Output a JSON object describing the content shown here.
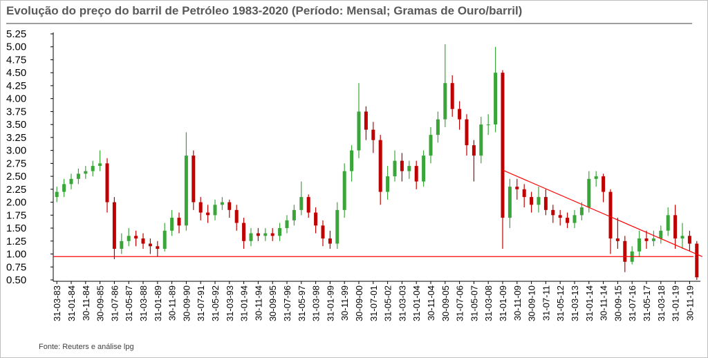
{
  "chart_data": {
    "type": "candlestick",
    "title": "Evolução do preço do barril de Petróleo 1983-2020 (Período: Mensal; Gramas de Ouro/barril)",
    "source": "Fonte: Reuters e análise lpg",
    "categories": [
      "31-03-83",
      null,
      "31-01-84",
      null,
      "30-11-84",
      null,
      "30-09-85",
      null,
      "31-07-86",
      null,
      "31-05-87",
      null,
      "31-03-88",
      null,
      "31-01-89",
      null,
      "30-11-89",
      null,
      "30-09-90",
      null,
      "31-07-91",
      null,
      "31-05-92",
      null,
      "31-03-93",
      null,
      "31-01-94",
      null,
      "30-11-94",
      null,
      "30-09-95",
      null,
      "31-07-96",
      null,
      "31-05-97",
      null,
      "31-03-98",
      null,
      "31-01-99",
      null,
      "30-11-99",
      null,
      "30-09-00",
      null,
      "31-07-01",
      null,
      "31-05-02",
      null,
      "31-03-03",
      null,
      "31-01-04",
      null,
      "30-11-04",
      null,
      "30-09-05",
      null,
      "31-07-06",
      null,
      "31-05-07",
      null,
      "31-03-08",
      null,
      "31-01-09",
      null,
      "30-11-09",
      null,
      "30-09-10",
      null,
      "31-07-11",
      null,
      "31-05-12",
      null,
      "31-03-13",
      null,
      "31-01-14",
      null,
      "30-11-14",
      null,
      "30-09-15",
      null,
      "31-07-16",
      null,
      "31-05-17",
      null,
      "31-03-18",
      null,
      "31-01-19",
      null,
      "30-11-19",
      null
    ],
    "open": [
      2.1,
      2.2,
      2.35,
      2.45,
      2.55,
      2.6,
      2.7,
      2.75,
      2.0,
      1.1,
      1.25,
      1.35,
      1.3,
      1.2,
      1.15,
      1.1,
      1.45,
      1.7,
      1.55,
      2.9,
      2.0,
      1.8,
      1.75,
      1.95,
      2.0,
      1.85,
      1.6,
      1.25,
      1.4,
      1.35,
      1.4,
      1.35,
      1.5,
      1.65,
      1.85,
      2.1,
      1.8,
      1.55,
      1.3,
      1.2,
      1.85,
      2.6,
      3.0,
      3.75,
      3.4,
      3.2,
      2.2,
      2.5,
      2.8,
      2.6,
      2.7,
      2.4,
      2.9,
      3.3,
      3.6,
      4.3,
      3.8,
      3.6,
      3.1,
      2.9,
      3.5,
      3.5,
      4.5,
      1.7,
      2.3,
      2.25,
      2.1,
      1.95,
      2.1,
      1.85,
      1.75,
      1.7,
      1.6,
      1.75,
      1.9,
      2.45,
      2.5,
      2.2,
      1.3,
      1.25,
      0.85,
      1.05,
      1.3,
      1.25,
      1.3,
      1.45,
      1.75,
      1.3,
      1.35,
      1.2
    ],
    "high": [
      2.3,
      2.45,
      2.55,
      2.65,
      2.7,
      2.8,
      3.0,
      2.85,
      2.1,
      1.4,
      1.5,
      1.45,
      1.4,
      1.3,
      1.25,
      1.6,
      1.85,
      1.8,
      3.35,
      3.0,
      2.1,
      1.95,
      2.05,
      2.1,
      2.05,
      1.95,
      1.7,
      1.5,
      1.5,
      1.5,
      1.5,
      1.6,
      1.75,
      1.95,
      2.4,
      2.15,
      1.9,
      1.65,
      1.45,
      2.0,
      2.75,
      3.1,
      4.3,
      3.85,
      3.55,
      3.3,
      2.7,
      3.0,
      2.95,
      2.8,
      2.8,
      3.0,
      3.45,
      3.75,
      5.05,
      4.45,
      3.95,
      3.7,
      3.2,
      3.65,
      3.7,
      5.0,
      4.55,
      2.45,
      2.45,
      2.35,
      2.2,
      2.3,
      2.25,
      1.95,
      1.85,
      1.8,
      1.85,
      2.0,
      2.6,
      2.6,
      2.55,
      2.25,
      1.7,
      1.35,
      1.15,
      1.45,
      1.45,
      1.45,
      1.55,
      1.9,
      1.95,
      1.6,
      1.45,
      1.25
    ],
    "low": [
      2.0,
      2.1,
      2.25,
      2.35,
      2.45,
      2.5,
      2.6,
      1.8,
      0.9,
      1.0,
      1.15,
      1.15,
      1.1,
      1.0,
      0.95,
      1.05,
      1.35,
      1.4,
      1.45,
      1.85,
      1.65,
      1.6,
      1.65,
      1.85,
      1.7,
      1.45,
      1.1,
      1.15,
      1.25,
      1.25,
      1.25,
      1.25,
      1.4,
      1.55,
      1.75,
      1.7,
      1.4,
      1.15,
      1.1,
      1.1,
      1.7,
      2.4,
      2.85,
      3.2,
      2.95,
      1.95,
      2.05,
      2.4,
      2.4,
      2.45,
      2.25,
      2.3,
      2.75,
      3.15,
      3.45,
      3.65,
      3.4,
      2.9,
      2.4,
      2.75,
      3.3,
      3.35,
      1.1,
      1.5,
      2.05,
      1.9,
      1.8,
      1.8,
      1.75,
      1.6,
      1.55,
      1.5,
      1.5,
      1.65,
      1.8,
      2.3,
      2.0,
      1.0,
      1.1,
      0.65,
      0.8,
      0.95,
      1.1,
      1.15,
      1.2,
      1.35,
      1.1,
      1.1,
      1.05,
      0.5
    ],
    "close": [
      2.2,
      2.35,
      2.45,
      2.55,
      2.6,
      2.7,
      2.75,
      2.0,
      1.1,
      1.25,
      1.35,
      1.3,
      1.2,
      1.15,
      1.1,
      1.45,
      1.7,
      1.55,
      2.9,
      2.0,
      1.8,
      1.75,
      1.95,
      2.0,
      1.85,
      1.6,
      1.25,
      1.4,
      1.35,
      1.4,
      1.35,
      1.5,
      1.65,
      1.85,
      2.1,
      1.8,
      1.55,
      1.3,
      1.2,
      1.85,
      2.6,
      3.0,
      3.75,
      3.4,
      3.2,
      2.2,
      2.5,
      2.8,
      2.6,
      2.7,
      2.4,
      2.9,
      3.3,
      3.6,
      4.3,
      3.8,
      3.6,
      3.1,
      2.9,
      3.5,
      3.5,
      4.5,
      1.7,
      2.3,
      2.25,
      2.1,
      1.95,
      2.1,
      1.85,
      1.75,
      1.7,
      1.6,
      1.75,
      1.9,
      2.45,
      2.5,
      2.2,
      1.3,
      1.25,
      0.85,
      1.05,
      1.3,
      1.25,
      1.3,
      1.45,
      1.75,
      1.3,
      1.35,
      1.2,
      0.55
    ],
    "up_color": "#3aa63a",
    "down_color": "#c00000",
    "ylim": [
      0.5,
      5.25
    ],
    "yticks": [
      {
        "value": 0.5,
        "label": "0.50"
      },
      {
        "value": 0.75,
        "label": "0.75"
      },
      {
        "value": 1,
        "label": "1.00"
      },
      {
        "value": 1.25,
        "label": "1.25"
      },
      {
        "value": 1.5,
        "label": "1.50"
      },
      {
        "value": 1.75,
        "label": "1.75"
      },
      {
        "value": 2,
        "label": "2.00"
      },
      {
        "value": 2.25,
        "label": "2.25"
      },
      {
        "value": 2.5,
        "label": "2.50"
      },
      {
        "value": 2.75,
        "label": "2.75"
      },
      {
        "value": 3,
        "label": "3.00"
      },
      {
        "value": 3.25,
        "label": "3.25"
      },
      {
        "value": 3.5,
        "label": "3.50"
      },
      {
        "value": 3.75,
        "label": "3.75"
      },
      {
        "value": 4,
        "label": "4.00"
      },
      {
        "value": 4.25,
        "label": "4.25"
      },
      {
        "value": 4.5,
        "label": "4.50"
      },
      {
        "value": 4.75,
        "label": "4.75"
      },
      {
        "value": 5,
        "label": "5.00"
      },
      {
        "value": 5.25,
        "label": "5.25"
      }
    ],
    "reference_line": {
      "value": 0.95,
      "color": "#ff0000"
    },
    "trend_line": {
      "from": {
        "category": 62,
        "value": 2.62
      },
      "to": {
        "category": 89,
        "value": 0.95
      },
      "color": "#ff0000"
    }
  }
}
